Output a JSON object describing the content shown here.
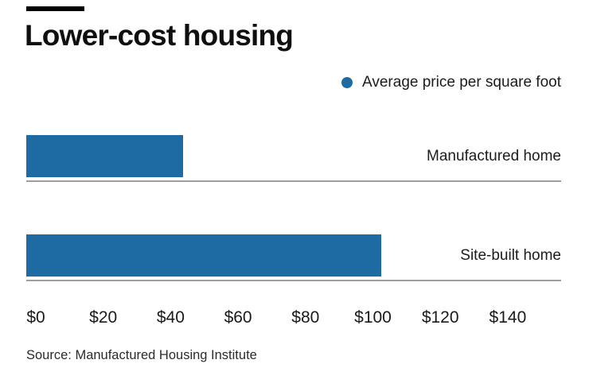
{
  "page": {
    "background_color": "#ffffff",
    "accent_bar_color": "#000000"
  },
  "header": {
    "title": "Lower-cost housing"
  },
  "legend": {
    "marker_color": "#1e6aa2",
    "label": "Average price per square foot"
  },
  "chart_data": {
    "type": "bar",
    "orientation": "horizontal",
    "title": "Lower-cost housing",
    "series_name": "Average price per square foot",
    "categories": [
      "Manufactured home",
      "Site-built home"
    ],
    "values": [
      45,
      102
    ],
    "value_unit": "dollars per square foot",
    "bar_color": "#1e6aa2",
    "baseline_color": "#9e9e9e",
    "grid": false,
    "legend_position": "top-right",
    "xlim": [
      0,
      150
    ],
    "x_tick_labels": [
      "$0",
      "$20",
      "$40",
      "$60",
      "$80",
      "$100",
      "$120",
      "$140"
    ],
    "x_tick_values": [
      0,
      20,
      40,
      60,
      80,
      100,
      120,
      140
    ]
  },
  "source": {
    "text": "Source: Manufactured Housing Institute"
  }
}
